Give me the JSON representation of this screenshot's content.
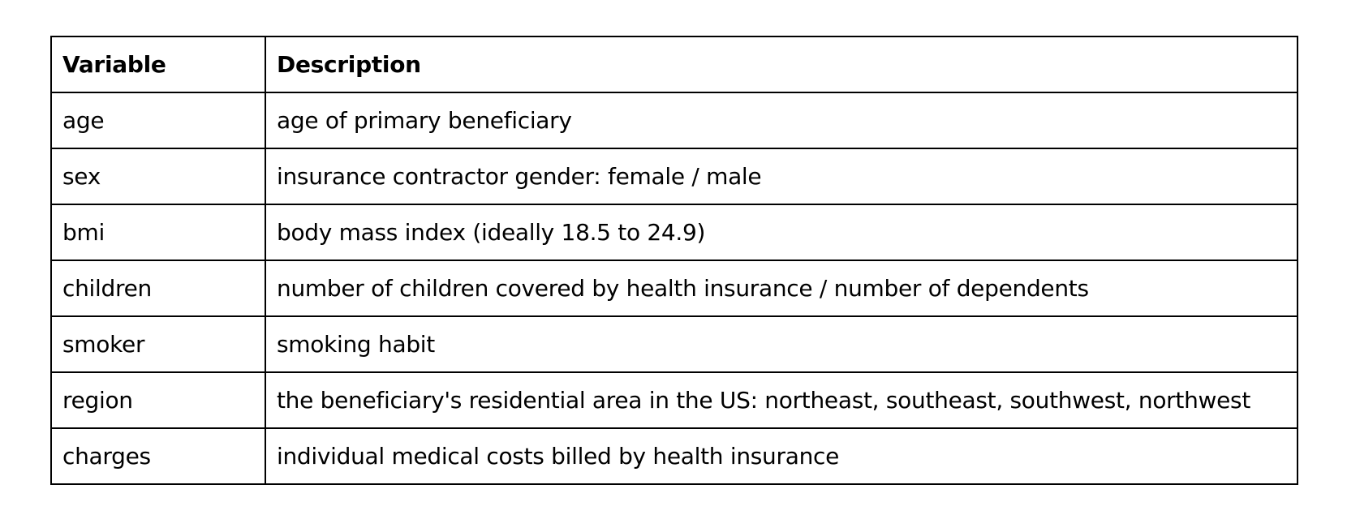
{
  "table": {
    "headers": [
      "Variable",
      "Description"
    ],
    "rows": [
      [
        "age",
        "age of primary beneficiary"
      ],
      [
        "sex",
        "insurance contractor gender: female / male"
      ],
      [
        "bmi",
        "body mass index (ideally 18.5 to 24.9)"
      ],
      [
        "children",
        "number of children covered by health insurance / number of dependents"
      ],
      [
        "smoker",
        "smoking habit"
      ],
      [
        "region",
        "the beneficiary's residential area in the US: northeast, southeast, southwest, northwest"
      ],
      [
        "charges",
        "individual medical costs billed by health insurance"
      ]
    ]
  }
}
